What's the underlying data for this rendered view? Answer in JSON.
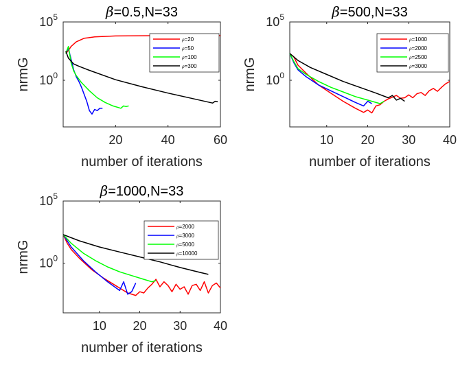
{
  "chart_data": [
    {
      "type": "line",
      "title": "β=0.5,N=33",
      "xlabel": "number of iterations",
      "ylabel": "nrmG",
      "yscale": "log",
      "xlim": [
        0,
        60
      ],
      "ylim_exponent": [
        -4,
        5
      ],
      "xticks": [
        "20",
        "40",
        "60"
      ],
      "yticks": [
        "10^5",
        "10^0"
      ],
      "legend_position": "top-right",
      "series": [
        {
          "name": "ρ=20",
          "color": "#ff0000",
          "x": [
            1,
            2,
            3,
            5,
            8,
            12,
            20,
            30,
            40,
            50,
            60
          ],
          "log10_y": [
            2.3,
            2.55,
            2.9,
            3.3,
            3.6,
            3.72,
            3.8,
            3.82,
            3.83,
            3.83,
            3.83
          ]
        },
        {
          "name": "ρ=50",
          "color": "#0000ff",
          "x": [
            1,
            2,
            3,
            4,
            5,
            6,
            7,
            8,
            9,
            10,
            11,
            12,
            13,
            14,
            15
          ],
          "log10_y": [
            2.3,
            2.75,
            1.8,
            0.9,
            0.3,
            -0.1,
            -0.6,
            -1.2,
            -1.8,
            -2.6,
            -2.9,
            -2.5,
            -2.6,
            -2.4,
            -2.4
          ]
        },
        {
          "name": "ρ=100",
          "color": "#00ff00",
          "x": [
            1,
            2,
            3,
            4,
            5,
            7,
            10,
            13,
            16,
            19,
            22,
            23,
            24,
            25
          ],
          "log10_y": [
            2.3,
            2.9,
            1.5,
            0.8,
            0.4,
            -0.2,
            -0.9,
            -1.5,
            -1.9,
            -2.2,
            -2.4,
            -2.2,
            -2.25,
            -2.2
          ]
        },
        {
          "name": "ρ=300",
          "color": "#000000",
          "x": [
            1,
            2,
            4,
            6,
            10,
            20,
            30,
            40,
            50,
            57,
            58,
            59
          ],
          "log10_y": [
            2.5,
            1.9,
            1.4,
            1.2,
            0.85,
            0.05,
            -0.55,
            -1.1,
            -1.6,
            -1.95,
            -1.8,
            -1.85
          ]
        }
      ]
    },
    {
      "type": "line",
      "title": "β=500,N=33",
      "xlabel": "number of iterations",
      "ylabel": "nrmG",
      "yscale": "log",
      "xlim": [
        1,
        40
      ],
      "ylim_exponent": [
        -4,
        5
      ],
      "xticks": [
        "10",
        "20",
        "30",
        "40"
      ],
      "yticks": [
        "10^5",
        "10^0"
      ],
      "legend_position": "top-right",
      "series": [
        {
          "name": "ρ=1000",
          "color": "#ff0000",
          "x": [
            1,
            2,
            3,
            5,
            8,
            11,
            14,
            17,
            19,
            20,
            21,
            22,
            23,
            24,
            25,
            26,
            27,
            28,
            29,
            30,
            31,
            32,
            33,
            34,
            35,
            36,
            37,
            38,
            39,
            40
          ],
          "log10_y": [
            2.3,
            2.0,
            1.3,
            0.6,
            -0.4,
            -1.1,
            -1.8,
            -2.4,
            -2.75,
            -2.55,
            -2.8,
            -2.2,
            -2.1,
            -1.8,
            -1.6,
            -1.45,
            -1.3,
            -1.55,
            -1.5,
            -1.25,
            -1.5,
            -1.15,
            -1.05,
            -1.3,
            -0.9,
            -0.7,
            -0.95,
            -0.6,
            -0.3,
            -0.1
          ]
        },
        {
          "name": "ρ=2000",
          "color": "#0000ff",
          "x": [
            1,
            2,
            3,
            5,
            8,
            11,
            14,
            17,
            19,
            20,
            21
          ],
          "log10_y": [
            2.3,
            1.5,
            0.9,
            0.3,
            -0.4,
            -0.9,
            -1.4,
            -1.9,
            -2.2,
            -1.8,
            -2.0
          ]
        },
        {
          "name": "ρ=2500",
          "color": "#00ff00",
          "x": [
            1,
            2,
            3,
            5,
            8,
            11,
            14,
            17,
            20,
            23,
            24
          ],
          "log10_y": [
            2.3,
            1.6,
            1.0,
            0.5,
            -0.1,
            -0.6,
            -1.0,
            -1.4,
            -1.7,
            -2.0,
            -1.8
          ]
        },
        {
          "name": "ρ=3000",
          "color": "#000000",
          "x": [
            1,
            3,
            6,
            10,
            14,
            18,
            22,
            25,
            26,
            27,
            28,
            29
          ],
          "log10_y": [
            2.3,
            1.7,
            1.1,
            0.5,
            -0.1,
            -0.6,
            -1.1,
            -1.5,
            -1.3,
            -1.7,
            -1.55,
            -1.8
          ]
        }
      ]
    },
    {
      "type": "line",
      "title": "β=1000,N=33",
      "xlabel": "number of iterations",
      "ylabel": "nrmG",
      "yscale": "log",
      "xlim": [
        1,
        40
      ],
      "ylim_exponent": [
        -4,
        5
      ],
      "xticks": [
        "10",
        "20",
        "30",
        "40"
      ],
      "yticks": [
        "10^5",
        "10^0"
      ],
      "legend_position": "top-right",
      "series": [
        {
          "name": "ρ=2000",
          "color": "#ff0000",
          "x": [
            1,
            2,
            3,
            5,
            8,
            11,
            14,
            17,
            19,
            20,
            21,
            22,
            23,
            24,
            25,
            26,
            27,
            28,
            29,
            30,
            31,
            32,
            33,
            34,
            35,
            36,
            37,
            38,
            39,
            40
          ],
          "log10_y": [
            2.3,
            1.6,
            1.1,
            0.4,
            -0.5,
            -1.2,
            -1.8,
            -2.4,
            -2.6,
            -2.3,
            -2.4,
            -2.0,
            -1.7,
            -1.3,
            -1.9,
            -1.5,
            -1.8,
            -2.3,
            -1.7,
            -2.1,
            -1.9,
            -2.5,
            -1.8,
            -1.7,
            -2.2,
            -1.5,
            -2.4,
            -1.8,
            -1.6,
            -2.0
          ]
        },
        {
          "name": "ρ=3000",
          "color": "#0000ff",
          "x": [
            1,
            3,
            6,
            9,
            12,
            15,
            16,
            17,
            18,
            19
          ],
          "log10_y": [
            2.3,
            1.3,
            0.2,
            -0.7,
            -1.5,
            -2.2,
            -1.5,
            -2.5,
            -2.3,
            -1.6
          ]
        },
        {
          "name": "ρ=5000",
          "color": "#00ff00",
          "x": [
            1,
            3,
            6,
            9,
            12,
            15,
            18,
            21,
            23,
            24
          ],
          "log10_y": [
            2.3,
            1.6,
            0.8,
            0.2,
            -0.3,
            -0.7,
            -1.0,
            -1.3,
            -1.5,
            -1.4
          ]
        },
        {
          "name": "ρ=10000",
          "color": "#000000",
          "x": [
            1,
            5,
            10,
            15,
            20,
            25,
            30,
            35,
            37
          ],
          "log10_y": [
            2.3,
            1.8,
            1.3,
            0.9,
            0.5,
            0.1,
            -0.35,
            -0.75,
            -0.9
          ]
        }
      ]
    }
  ]
}
